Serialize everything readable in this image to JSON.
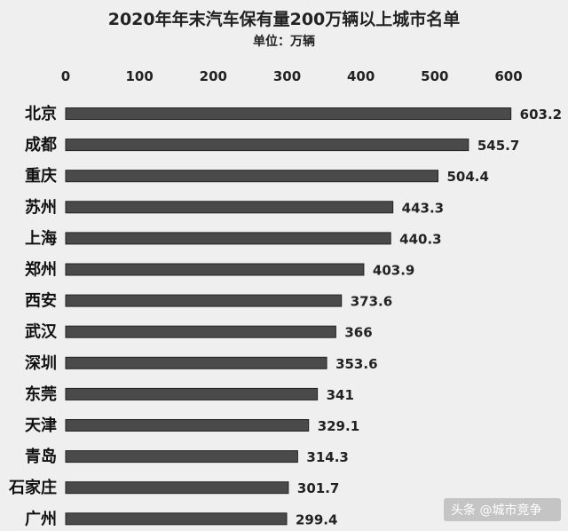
{
  "chart_data": {
    "type": "bar",
    "orientation": "horizontal",
    "title": "2020年年末汽车保有量200万辆以上城市名单",
    "subtitle": "单位：万辆",
    "categories": [
      "北京",
      "成都",
      "重庆",
      "苏州",
      "上海",
      "郑州",
      "西安",
      "武汉",
      "深圳",
      "东莞",
      "天津",
      "青岛",
      "石家庄",
      "广州"
    ],
    "values": [
      603.2,
      545.7,
      504.4,
      443.3,
      440.3,
      403.9,
      373.6,
      366,
      353.6,
      341,
      329.1,
      314.3,
      301.7,
      299.4
    ],
    "value_labels": [
      "603.2",
      "545.7",
      "504.4",
      "443.3",
      "440.3",
      "403.9",
      "373.6",
      "366",
      "353.6",
      "341",
      "329.1",
      "314.3",
      "301.7",
      "299.4"
    ],
    "xticks": [
      0,
      100,
      200,
      300,
      400,
      500,
      600
    ],
    "xlim": [
      0,
      600
    ],
    "xaxis_position": "top",
    "bar_color": "#4a4a4a",
    "grid": false,
    "legend": "none"
  },
  "watermark": {
    "text": "头条 @城市竞争"
  }
}
